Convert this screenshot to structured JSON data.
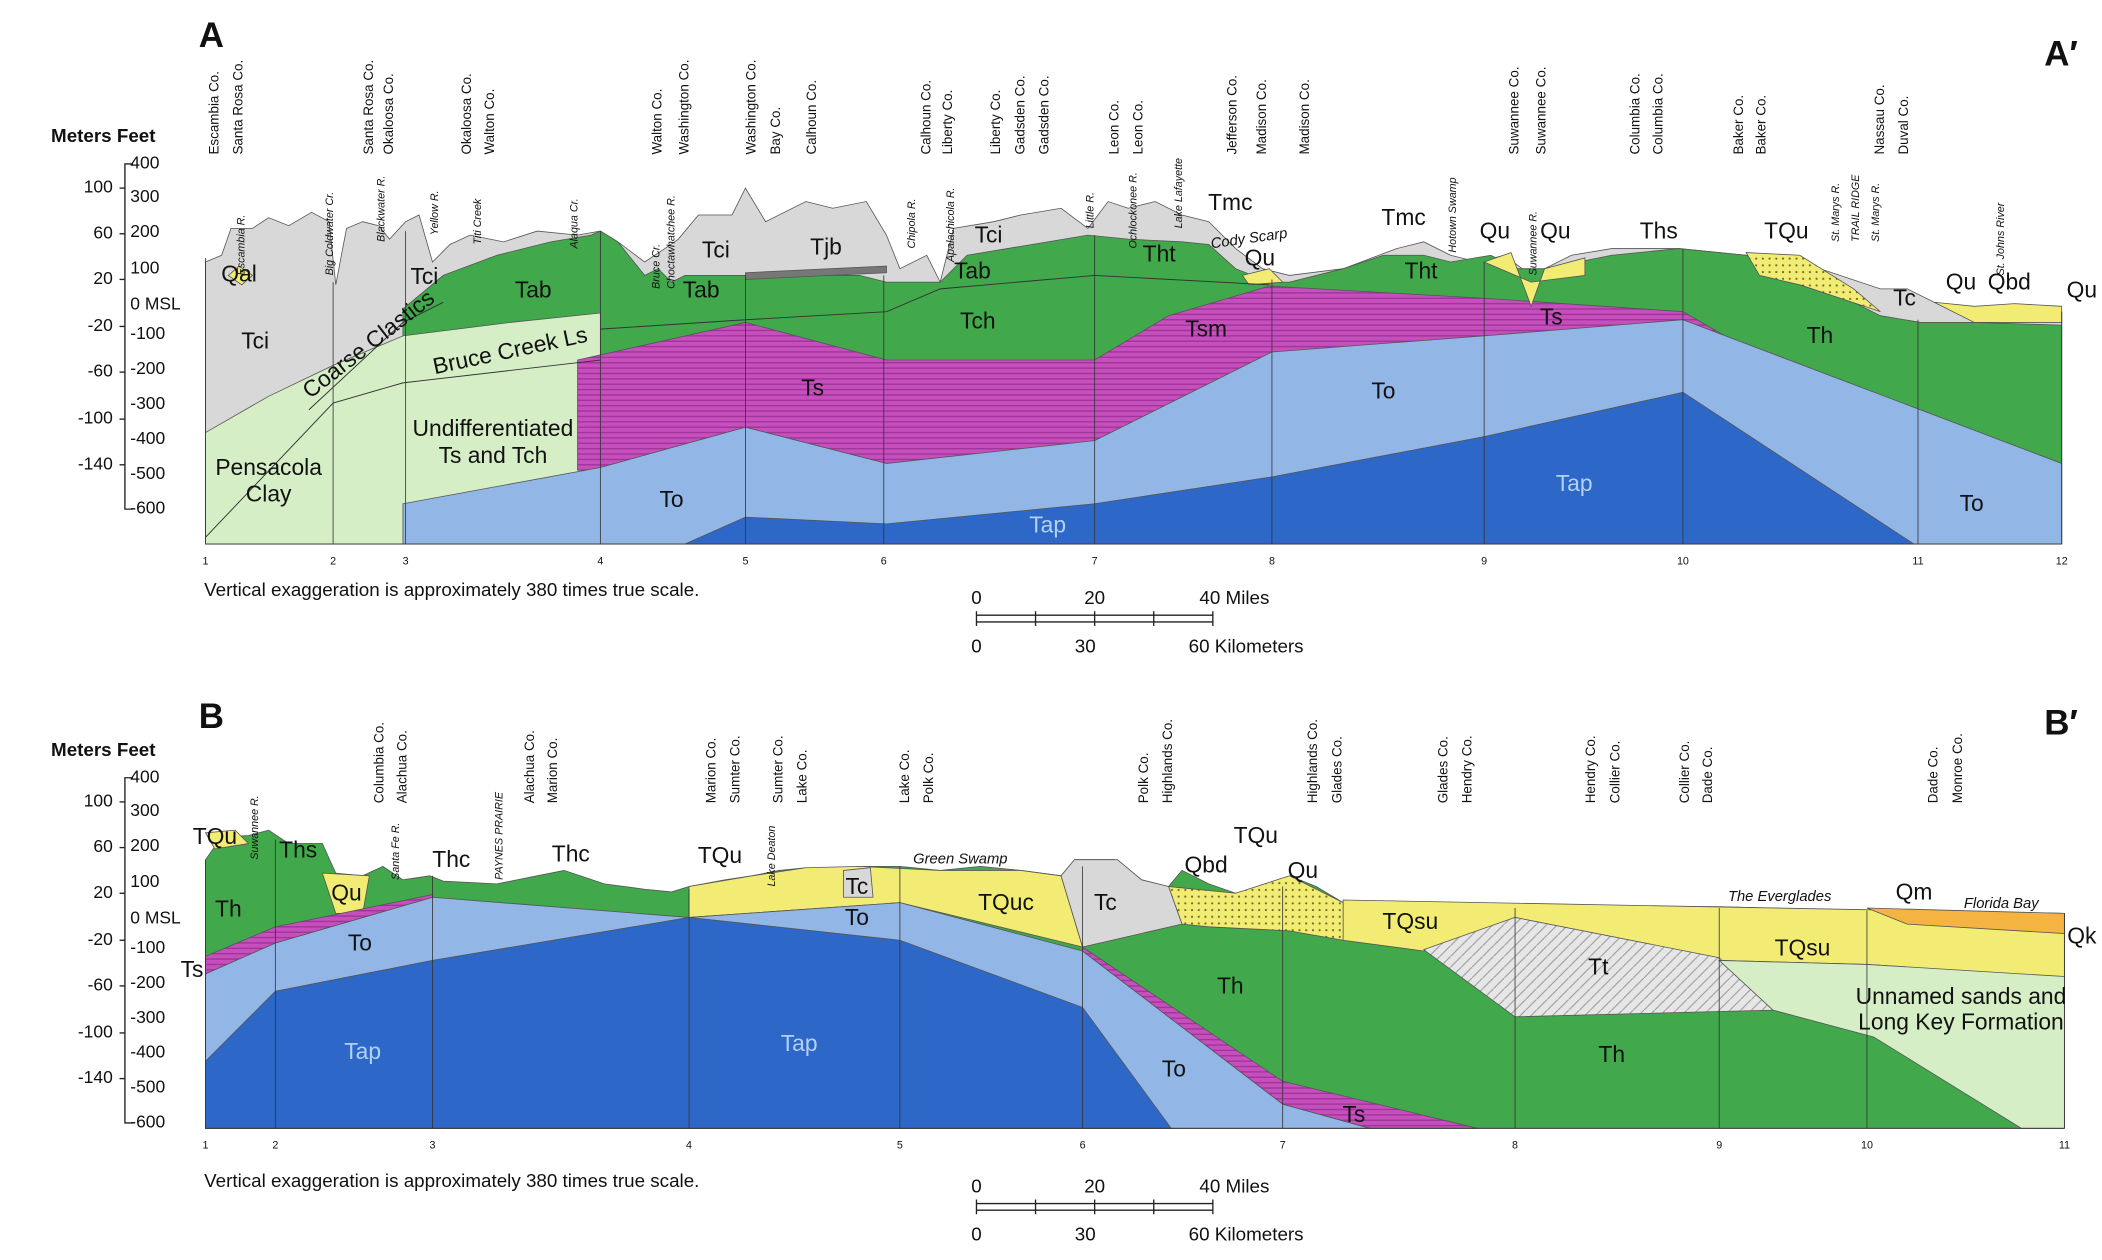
{
  "panels": [
    {
      "label": "A",
      "end_label": "A′",
      "axis_title": "Meters Feet",
      "meters": [
        "100",
        "60",
        "20",
        "-20",
        "-60",
        "-100",
        "-140"
      ],
      "zero": "0 MSL",
      "feet": [
        "400",
        "300",
        "200",
        "100",
        "-100",
        "-200",
        "-300",
        "-400",
        "-500",
        "-600"
      ],
      "counties": [
        "Escambia Co.",
        "Santa Rosa Co.",
        "Santa Rosa Co.",
        "Okaloosa Co.",
        "Okaloosa Co.",
        "Walton Co.",
        "Walton Co.",
        "Washington Co.",
        "Washington Co.",
        "Bay Co.",
        "Calhoun Co.",
        "Calhoun Co.",
        "Liberty Co.",
        "Liberty Co.",
        "Gadsden Co.",
        "Gadsden Co.",
        "Leon Co.",
        "Leon Co.",
        "Jefferson Co.",
        "Madison Co.",
        "Madison Co.",
        "Suwannee Co.",
        "Suwannee Co.",
        "Columbia Co.",
        "Columbia Co.",
        "Baker Co.",
        "Baker Co.",
        "Nassau Co.",
        "Duval Co."
      ],
      "features": [
        "Escambia R.",
        "Big Coldwater Cr.",
        "Blackwater R.",
        "Yellow R.",
        "Titi Creek",
        "Alaqua Cr.",
        "Bruce Cr.",
        "Choctawhatchee R.",
        "Chipola R.",
        "Apalachicola R.",
        "Little R.",
        "Ochlockonee R.",
        "Lake Lafayette",
        "Cody Scarp",
        "Hotown Swamp",
        "Suwannee R.",
        "St. Marys R.",
        "TRAIL RIDGE",
        "St. Marys R.",
        "St. Johns River"
      ],
      "units": [
        "Qal",
        "Tci",
        "Tci",
        "Tab",
        "Coarse Clastics",
        "Bruce Creek Ls",
        "Undifferentiated",
        "Ts and Tch",
        "Pensacola",
        "Clay",
        "Tci",
        "Tjb",
        "Tab",
        "Tci",
        "Tab",
        "Tch",
        "Ts",
        "To",
        "Tap",
        "Tmc",
        "Qu",
        "Tht",
        "Tsm",
        "Tmc",
        "Tht",
        "Qu",
        "Qu",
        "Ths",
        "Ts",
        "TQu",
        "Tc",
        "Qu",
        "Qbd",
        "Qu",
        "To",
        "Tap",
        "Th",
        "To"
      ],
      "stations": [
        "1",
        "2",
        "3",
        "4",
        "5",
        "6",
        "7",
        "8",
        "9",
        "10",
        "11",
        "12"
      ],
      "note": "Vertical exaggeration is approximately 380 times true scale.",
      "scale": {
        "miles": [
          "0",
          "20",
          "40 Miles"
        ],
        "km": [
          "0",
          "30",
          "60 Kilometers"
        ]
      }
    },
    {
      "label": "B",
      "end_label": "B′",
      "axis_title": "Meters Feet",
      "meters": [
        "100",
        "60",
        "20",
        "-20",
        "-60",
        "-100",
        "-140"
      ],
      "zero": "0 MSL",
      "feet": [
        "400",
        "300",
        "200",
        "100",
        "-100",
        "-200",
        "-300",
        "-400",
        "-500",
        "-600"
      ],
      "counties": [
        "Columbia Co.",
        "Alachua Co.",
        "Alachua Co.",
        "Marion Co.",
        "Marion Co.",
        "Sumter Co.",
        "Sumter Co.",
        "Lake Co.",
        "Lake Co.",
        "Polk Co.",
        "Polk Co.",
        "Highlands Co.",
        "Highlands Co.",
        "Glades Co.",
        "Glades Co.",
        "Hendry Co.",
        "Hendry Co.",
        "Collier Co.",
        "Collier Co.",
        "Dade Co.",
        "Dade Co.",
        "Monroe Co."
      ],
      "features": [
        "Suwannee R.",
        "Santa Fe R.",
        "PAYNES PRAIRIE",
        "Lake Deaton",
        "Green Swamp",
        "The Everglades",
        "Florida Bay"
      ],
      "units": [
        "TQu",
        "Ths",
        "Th",
        "Qu",
        "Thc",
        "Thc",
        "To",
        "Ts",
        "Tap",
        "TQu",
        "Tc",
        "To",
        "TQuc",
        "Tap",
        "Tc",
        "Qbd",
        "TQu",
        "Qu",
        "TQsu",
        "Th",
        "To",
        "Ts",
        "Tt",
        "Th",
        "Qm",
        "TQsu",
        "Qk",
        "Unnamed sands and",
        "Long Key Formation"
      ],
      "stations": [
        "1",
        "2",
        "3",
        "4",
        "5",
        "6",
        "7",
        "8",
        "9",
        "10",
        "11"
      ],
      "note": "Vertical exaggeration is approximately 380 times true scale.",
      "scale": {
        "miles": [
          "0",
          "20",
          "40 Miles"
        ],
        "km": [
          "0",
          "30",
          "60 Kilometers"
        ]
      }
    }
  ]
}
